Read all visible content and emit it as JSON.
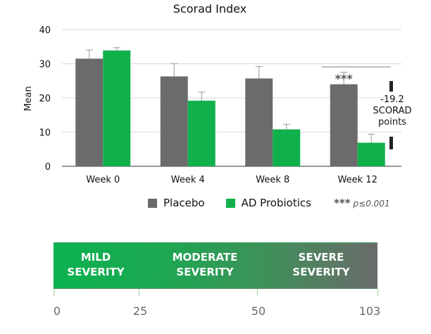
{
  "chart_data": {
    "type": "bar",
    "title": "Scorad Index",
    "ylabel": "Mean",
    "xlabel": "",
    "ylim": [
      0,
      40
    ],
    "yticks": [
      0,
      10,
      20,
      30,
      40
    ],
    "grid": true,
    "legend_placement": "bottom",
    "categories": [
      "Week 0",
      "Week 4",
      "Week 8",
      "Week 12"
    ],
    "series": [
      {
        "name": "Placebo",
        "color": "#6b6b6b",
        "values": [
          31.5,
          26.3,
          25.7,
          24.0
        ],
        "errors": [
          2.5,
          3.7,
          3.5,
          3.5
        ]
      },
      {
        "name": "AD Probiotics",
        "color": "#10b14b",
        "values": [
          33.9,
          19.2,
          10.8,
          6.9
        ],
        "errors": [
          0.8,
          2.5,
          1.5,
          2.5
        ]
      }
    ],
    "annotations": {
      "significance_marker": "***",
      "difference_text": [
        "-19.2",
        "SCORAD",
        "points"
      ]
    }
  },
  "legend_note": {
    "stars": "***",
    "p_text": "p≤0.001"
  },
  "severity_scale": {
    "bands": [
      {
        "line1": "MILD",
        "line2": "SEVERITY"
      },
      {
        "line1": "MODERATE",
        "line2": "SEVERITY"
      },
      {
        "line1": "SEVERE",
        "line2": "SEVERITY"
      }
    ],
    "tick_values": [
      0,
      25,
      50,
      103
    ],
    "tick_labels": [
      "0",
      "25",
      "50",
      "103"
    ],
    "bar_colors": {
      "start": "#0bb24e",
      "end": "#6b6b6b"
    }
  }
}
